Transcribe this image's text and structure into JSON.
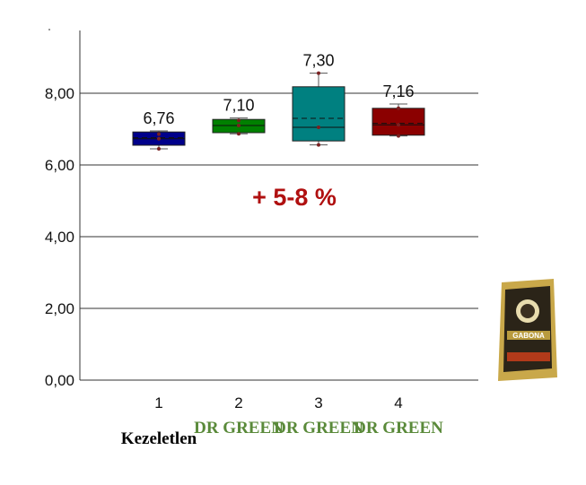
{
  "chart_data": {
    "type": "box",
    "categories": [
      "1",
      "2",
      "3",
      "4"
    ],
    "means": [
      6.76,
      7.1,
      7.3,
      7.16
    ],
    "mean_labels": [
      "6,76",
      "7,10",
      "7,30",
      "7,16"
    ],
    "boxes": [
      {
        "min": 6.45,
        "q1": 6.55,
        "median": 6.73,
        "q3": 6.92,
        "max": 6.95,
        "points": [
          6.45,
          6.73,
          6.86
        ],
        "color": "#00008b"
      },
      {
        "min": 6.87,
        "q1": 6.9,
        "median": 7.1,
        "q3": 7.27,
        "max": 7.31,
        "points": [
          6.87,
          7.1,
          7.24
        ],
        "color": "#008000"
      },
      {
        "min": 6.56,
        "q1": 6.67,
        "median": 7.05,
        "q3": 8.18,
        "max": 8.56,
        "points": [
          6.56,
          7.05,
          8.56
        ],
        "color": "#008080"
      },
      {
        "min": 6.81,
        "q1": 6.83,
        "median": 7.12,
        "q3": 7.58,
        "max": 7.7,
        "points": [
          6.81,
          7.12,
          7.58
        ],
        "color": "#8b0000"
      }
    ],
    "yticks": [
      "0,00",
      "2,00",
      "4,00",
      "6,00",
      "8,00"
    ],
    "ytick_values": [
      0,
      2,
      4,
      6,
      8
    ],
    "ylim": [
      0,
      10
    ],
    "grid": true,
    "annotation": "+ 5-8 %",
    "annotation_color": "#b01010"
  },
  "category_names": [
    "Kezeletlen",
    "DR GREEN",
    "DR GREEN",
    "DR GREEN"
  ],
  "category_name_colors": [
    "#000000",
    "#5a8a3a",
    "#5a8a3a",
    "#5a8a3a"
  ],
  "product": {
    "brand": "GABONA",
    "icon": "product-bag-image"
  }
}
